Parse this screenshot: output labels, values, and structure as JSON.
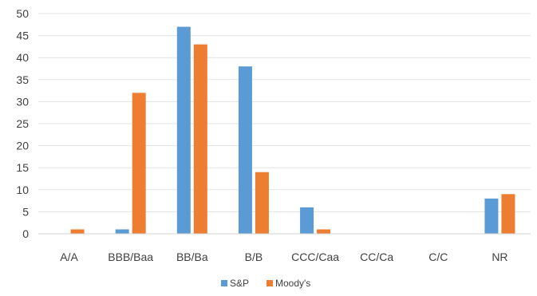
{
  "chart_data": {
    "type": "bar",
    "categories": [
      "A/A",
      "BBB/Baa",
      "BB/Ba",
      "B/B",
      "CCC/Caa",
      "CC/Ca",
      "C/C",
      "NR"
    ],
    "series": [
      {
        "name": "S&P",
        "color": "#5b9bd5",
        "values": [
          0,
          1,
          47,
          38,
          6,
          0,
          0,
          8
        ]
      },
      {
        "name": "Moody's",
        "color": "#ed7d31",
        "values": [
          1,
          32,
          43,
          14,
          1,
          0,
          0,
          9
        ]
      }
    ],
    "ylim": [
      0,
      50
    ],
    "yticks": [
      0,
      5,
      10,
      15,
      20,
      25,
      30,
      35,
      40,
      45,
      50
    ],
    "grid": true,
    "legend_position": "bottom"
  }
}
